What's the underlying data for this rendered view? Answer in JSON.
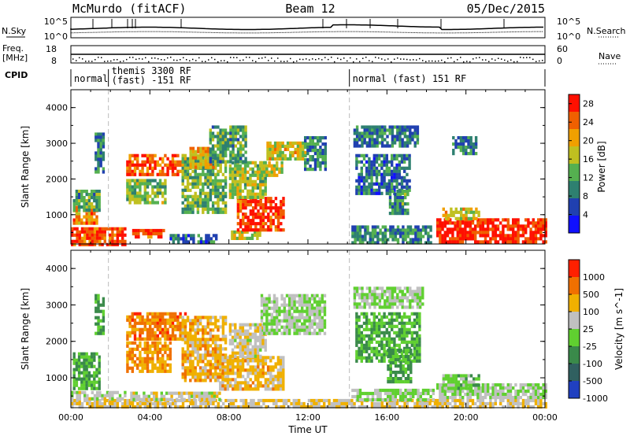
{
  "header": {
    "station": "McMurdo (fitACF)",
    "beam": "Beam 12",
    "date": "05/Dec/2015"
  },
  "side_labels": {
    "nsky": "N.Sky",
    "nsearch": "N.Search",
    "freq_line1": "Freq.",
    "freq_line2": "[MHz]",
    "nave": "Nave",
    "cpid": "CPID"
  },
  "noise_panel": {
    "tick_top": "10^5",
    "tick_bottom": "10^0"
  },
  "freq_panel": {
    "left_ticks": [
      "18",
      "8"
    ],
    "right_ticks": [
      "60",
      "0"
    ]
  },
  "cpid_segments": [
    {
      "start_hour": 0.0,
      "end_hour": 1.9,
      "label_1": "normal",
      "label_2": ""
    },
    {
      "start_hour": 1.9,
      "end_hour": 14.1,
      "label_1": "themis 3300 RF",
      "label_2": "(fast) -151 RF"
    },
    {
      "start_hour": 14.1,
      "end_hour": 24.0,
      "label_1": "normal (fast) 151 RF",
      "label_2": ""
    }
  ],
  "chart_data": [
    {
      "type": "heatmap",
      "title": "",
      "xlabel": "Time UT",
      "ylabel": "Slant Range [km]",
      "xlim": [
        0,
        24
      ],
      "ylim": [
        180,
        4500
      ],
      "x_ticks": [
        "00:00",
        "04:00",
        "08:00",
        "12:00",
        "16:00",
        "20:00",
        "00:00"
      ],
      "y_ticks": [
        "1000",
        "2000",
        "3000",
        "4000"
      ],
      "colorbar": {
        "label": "Power [dB]",
        "ticks": [
          "4",
          "8",
          "12",
          "16",
          "20",
          "24",
          "28"
        ],
        "range": [
          0,
          30
        ],
        "colors": [
          "#1010ff",
          "#2040b0",
          "#2e8070",
          "#55b050",
          "#c0c020",
          "#f0a000",
          "#f06000",
          "#ff1000"
        ]
      },
      "regions": [
        {
          "t0": 0.0,
          "t1": 2.8,
          "r0": 200,
          "r1": 650,
          "level": 26
        },
        {
          "t0": 3.1,
          "t1": 4.7,
          "r0": 350,
          "r1": 600,
          "level": 26
        },
        {
          "t0": 5.0,
          "t1": 7.3,
          "r0": 240,
          "r1": 460,
          "level": 8
        },
        {
          "t0": 8.1,
          "t1": 9.6,
          "r0": 320,
          "r1": 560,
          "level": 16
        },
        {
          "t0": 8.4,
          "t1": 10.8,
          "r0": 600,
          "r1": 1500,
          "level": 27
        },
        {
          "t0": 0.1,
          "t1": 1.3,
          "r0": 750,
          "r1": 1250,
          "level": 22
        },
        {
          "t0": 0.1,
          "t1": 1.4,
          "r0": 1150,
          "r1": 1700,
          "level": 12
        },
        {
          "t0": 2.8,
          "t1": 5.8,
          "r0": 2100,
          "r1": 2700,
          "level": 25
        },
        {
          "t0": 2.8,
          "t1": 4.8,
          "r0": 1300,
          "r1": 2000,
          "level": 14
        },
        {
          "t0": 5.6,
          "t1": 7.8,
          "r0": 1100,
          "r1": 2700,
          "level": 13
        },
        {
          "t0": 6.0,
          "t1": 7.2,
          "r0": 2300,
          "r1": 2900,
          "level": 20
        },
        {
          "t0": 8.0,
          "t1": 9.8,
          "r0": 1500,
          "r1": 2500,
          "level": 15
        },
        {
          "t0": 9.6,
          "t1": 10.7,
          "r0": 2100,
          "r1": 2500,
          "level": 17
        },
        {
          "t0": 9.9,
          "t1": 11.9,
          "r0": 2550,
          "r1": 3050,
          "level": 18
        },
        {
          "t0": 1.2,
          "t1": 1.6,
          "r0": 2200,
          "r1": 3300,
          "level": 9
        },
        {
          "t0": 7.0,
          "t1": 8.8,
          "r0": 2500,
          "r1": 3500,
          "level": 12
        },
        {
          "t0": 11.8,
          "t1": 12.9,
          "r0": 2300,
          "r1": 3200,
          "level": 10
        },
        {
          "t0": 14.3,
          "t1": 17.6,
          "r0": 2900,
          "r1": 3500,
          "level": 9
        },
        {
          "t0": 14.4,
          "t1": 17.2,
          "r0": 1600,
          "r1": 2700,
          "level": 8
        },
        {
          "t0": 16.1,
          "t1": 17.1,
          "r0": 1000,
          "r1": 1700,
          "level": 11
        },
        {
          "t0": 14.2,
          "t1": 18.2,
          "r0": 220,
          "r1": 700,
          "level": 10
        },
        {
          "t0": 18.5,
          "t1": 24.0,
          "r0": 250,
          "r1": 900,
          "level": 28
        },
        {
          "t0": 18.8,
          "t1": 20.6,
          "r0": 850,
          "r1": 1200,
          "level": 18
        },
        {
          "t0": 19.3,
          "t1": 20.5,
          "r0": 2700,
          "r1": 3200,
          "level": 9
        }
      ]
    },
    {
      "type": "heatmap",
      "title": "",
      "xlabel": "Time UT",
      "ylabel": "Slant Range [km]",
      "xlim": [
        0,
        24
      ],
      "ylim": [
        180,
        4500
      ],
      "x_ticks": [
        "00:00",
        "04:00",
        "08:00",
        "12:00",
        "16:00",
        "20:00",
        "00:00"
      ],
      "y_ticks": [
        "1000",
        "2000",
        "3000",
        "4000"
      ],
      "colorbar": {
        "label": "Velocity [m s^-1]",
        "ticks": [
          "1000",
          "500",
          "100",
          "25",
          "-25",
          "-100",
          "-500",
          "-1000"
        ],
        "range": [
          -1200,
          1200
        ],
        "colors": [
          "#2040c0",
          "#306060",
          "#3a8a4a",
          "#60d030",
          "#c0c0c0",
          "#f0b000",
          "#f07000",
          "#ff2000"
        ]
      },
      "regions": [
        {
          "t0": 0.0,
          "t1": 24.0,
          "r0": 200,
          "r1": 420,
          "level": 300
        },
        {
          "t0": 0.0,
          "t1": 2.8,
          "r0": 420,
          "r1": 640,
          "level": 120
        },
        {
          "t0": 3.0,
          "t1": 7.5,
          "r0": 420,
          "r1": 620,
          "level": 180
        },
        {
          "t0": 14.2,
          "t1": 18.3,
          "r0": 420,
          "r1": 700,
          "level": 0
        },
        {
          "t0": 18.5,
          "t1": 24.0,
          "r0": 420,
          "r1": 850,
          "level": 0
        },
        {
          "t0": 0.1,
          "t1": 1.4,
          "r0": 700,
          "r1": 1700,
          "level": -300
        },
        {
          "t0": 2.8,
          "t1": 5.8,
          "r0": 2100,
          "r1": 2800,
          "level": 700
        },
        {
          "t0": 2.8,
          "t1": 5.0,
          "r0": 1200,
          "r1": 2000,
          "level": 600
        },
        {
          "t0": 5.6,
          "t1": 7.8,
          "r0": 900,
          "r1": 2700,
          "level": 450
        },
        {
          "t0": 7.5,
          "t1": 10.8,
          "r0": 700,
          "r1": 1600,
          "level": 400
        },
        {
          "t0": 8.0,
          "t1": 9.8,
          "r0": 1600,
          "r1": 2500,
          "level": 200
        },
        {
          "t0": 9.6,
          "t1": 12.9,
          "r0": 2200,
          "r1": 3300,
          "level": 50
        },
        {
          "t0": 1.2,
          "t1": 1.6,
          "r0": 2200,
          "r1": 3300,
          "level": -350
        },
        {
          "t0": 14.3,
          "t1": 17.8,
          "r0": 2900,
          "r1": 3500,
          "level": 0
        },
        {
          "t0": 14.4,
          "t1": 17.6,
          "r0": 1500,
          "r1": 2800,
          "level": -300
        },
        {
          "t0": 16.0,
          "t1": 17.2,
          "r0": 900,
          "r1": 1800,
          "level": -300
        },
        {
          "t0": 18.8,
          "t1": 20.6,
          "r0": 700,
          "r1": 1100,
          "level": -150
        }
      ]
    }
  ]
}
